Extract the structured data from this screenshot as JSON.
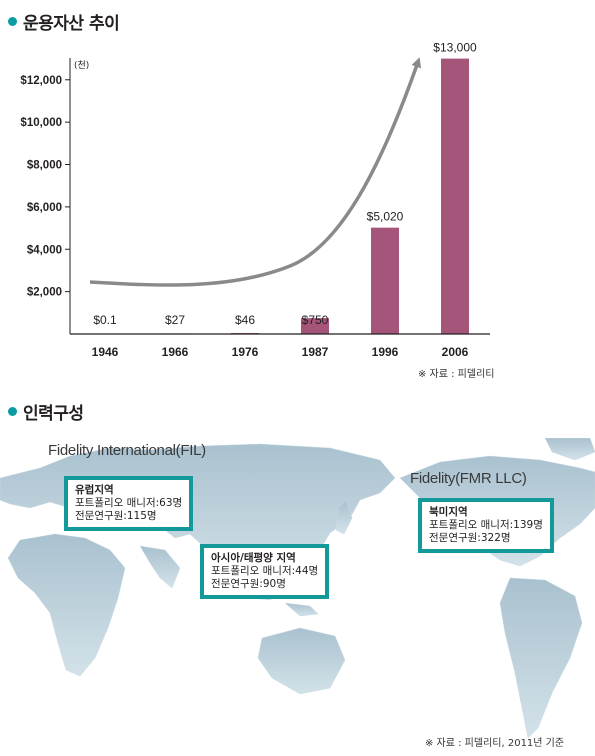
{
  "sections": {
    "aum_title": "운용자산 추이",
    "staff_title": "인력구성"
  },
  "chart_data": {
    "type": "bar",
    "title": "운용자산 추이",
    "unit_label": "(천)",
    "categories": [
      "1946",
      "1966",
      "1976",
      "1987",
      "1996",
      "2006"
    ],
    "values": [
      0.1,
      27,
      46,
      750,
      5020,
      13000
    ],
    "value_labels": [
      "$0.1",
      "$27",
      "$46",
      "$750",
      "$5,020",
      "$13,000"
    ],
    "yticks": [
      2000,
      4000,
      6000,
      8000,
      10000,
      12000
    ],
    "ytick_labels": [
      "$2,000",
      "$4,000",
      "$6,000",
      "$8,000",
      "$10,000",
      "$12,000"
    ],
    "ylim": [
      0,
      13500
    ],
    "xlabel": "",
    "ylabel": "",
    "grid": false,
    "bar_color": "#a5547a",
    "trend_arrow_color": "#8a8a8a"
  },
  "chart_source": "※ 자료 : 피델리티",
  "map": {
    "fil_label": "Fidelity International(FIL)",
    "fmr_label": "Fidelity(FMR LLC)",
    "regions": [
      {
        "name": "유럽지역",
        "managers": "포트폴리오 매니저:63명",
        "analysts": "전문연구원:115명"
      },
      {
        "name": "아시아/태평양 지역",
        "managers": "포트폴리오 매니저:44명",
        "analysts": "전문연구원:90명"
      },
      {
        "name": "북미지역",
        "managers": "포트폴리오 매니저:139명",
        "analysts": "전문연구원:322명"
      }
    ],
    "box_border_color": "#14999b",
    "map_color": "#bcd2dc"
  },
  "map_source": "※ 자료 : 피델리티, 2011년 기준"
}
